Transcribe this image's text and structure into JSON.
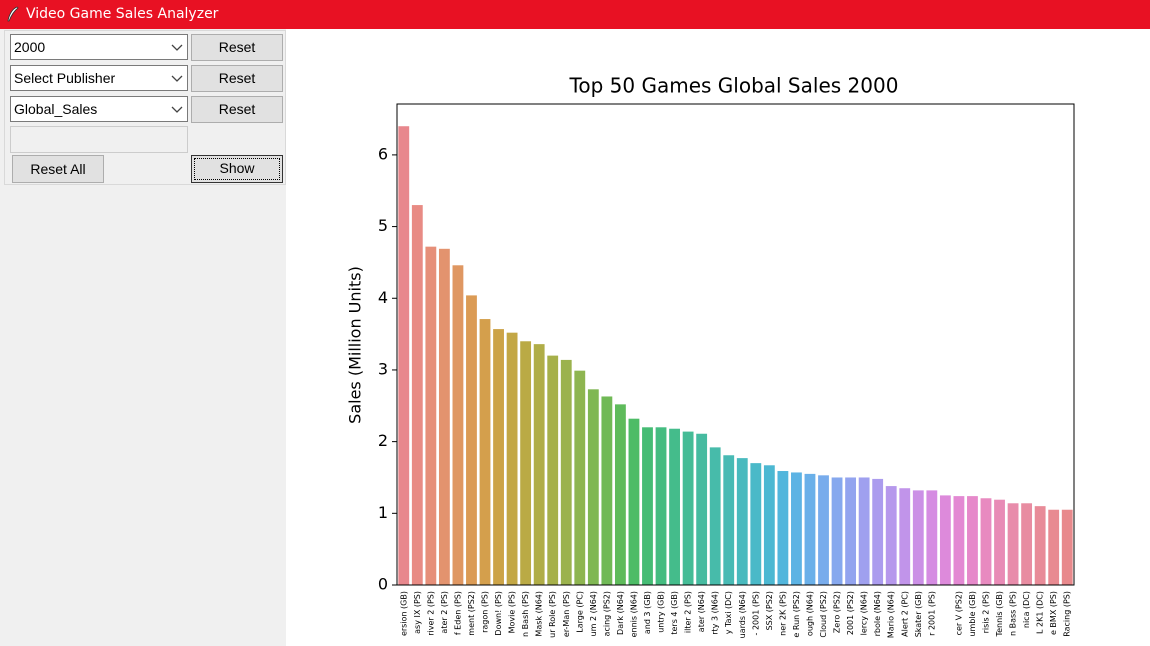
{
  "window": {
    "title": "Video Game Sales Analyzer"
  },
  "controls": {
    "year": "2000",
    "publisher": "Select Publisher",
    "metric": "Global_Sales",
    "reset_buttons": [
      "Reset",
      "Reset",
      "Reset"
    ],
    "reset_all": "Reset All",
    "show": "Show"
  },
  "chart_data": {
    "type": "bar",
    "title": "Top 50 Games Global Sales 2000",
    "y_label": "Sales (Million Units)",
    "categories": [
      "ersion (GB)",
      "asy IX (PS)",
      "river 2 (PS)",
      "ater 2 (PS)",
      "f Eden (PS)",
      "ment (PS2)",
      "ragon (PS)",
      "Down! (PS)",
      "Movie (PS)",
      "n Bash (PS)",
      "Mask (N64)",
      "ur Role (PS)",
      "er-Man (PS)",
      "Large (PC)",
      "um 2 (N64)",
      "acing (PS2)",
      "Dark (N64)",
      "ennis (N64)",
      "and 3 (GB)",
      "untry (GB)",
      "ters 4 (GB)",
      "ilter 2 (PS)",
      "ater (N64)",
      "rty 3 (N64)",
      "y Taxi (DC)",
      "uards (N64)",
      "- 2001 (PS)",
      "SSX (PS2)",
      "ner 2K (PS)",
      "e Run (PS2)",
      "ough (N64)",
      "Cloud (PS2)",
      "Zero (PS2)",
      "2001 (PS2)",
      "lercy (N64)",
      "rbole (N64)",
      "Mario (N64)",
      "Alert 2 (PC)",
      "Skater (GB)",
      "r 2001 (PS)",
      null,
      "cer V (PS2)",
      "umble (GB)",
      "risis 2 (PS)",
      "Tennis (GB)",
      "n Bass (PS)",
      "nica (DC)",
      "L 2K1 (DC)",
      "e BMX (PS)",
      "Racing (PS)"
    ],
    "values": [
      6.4,
      5.3,
      4.72,
      4.69,
      4.46,
      4.04,
      3.71,
      3.57,
      3.52,
      3.4,
      3.36,
      3.2,
      3.14,
      2.99,
      2.73,
      2.63,
      2.52,
      2.32,
      2.2,
      2.2,
      2.18,
      2.14,
      2.11,
      1.92,
      1.81,
      1.77,
      1.7,
      1.67,
      1.59,
      1.57,
      1.55,
      1.53,
      1.5,
      1.5,
      1.5,
      1.48,
      1.38,
      1.35,
      1.32,
      1.32,
      1.25,
      1.24,
      1.24,
      1.21,
      1.19,
      1.14,
      1.14,
      1.1,
      1.05,
      1.05
    ],
    "colors": [
      "#e8878d",
      "#e88b84",
      "#e68f79",
      "#e3936e",
      "#df9762",
      "#db9b55",
      "#d49f4c",
      "#cca347",
      "#c3a745",
      "#baaa45",
      "#b0ad47",
      "#a6b04a",
      "#9bb24d",
      "#8eb550",
      "#80b753",
      "#70b956",
      "#5ebb5b",
      "#4dbc66",
      "#45bc74",
      "#44bc80",
      "#44bc8b",
      "#45bc96",
      "#46bba0",
      "#47bbaa",
      "#48bab4",
      "#49babe",
      "#4ab9c8",
      "#4cb8d2",
      "#52b6dc",
      "#5cb3e4",
      "#6ab0e9",
      "#78acec",
      "#86a8ee",
      "#93a4ef",
      "#9fa0ef",
      "#ab9cee",
      "#b698ec",
      "#c194ea",
      "#cb90e6",
      "#d58ce2",
      "#dd8adb",
      "#e389d3",
      "#e689ca",
      "#e88ac0",
      "#e88bb6",
      "#e88cab",
      "#e88ca1",
      "#e88b98",
      "#e88a91",
      "#e8898c"
    ],
    "ylim": [
      0,
      6.71
    ],
    "yticks": [
      0,
      1,
      2,
      3,
      4,
      5,
      6
    ],
    "grid": false
  }
}
